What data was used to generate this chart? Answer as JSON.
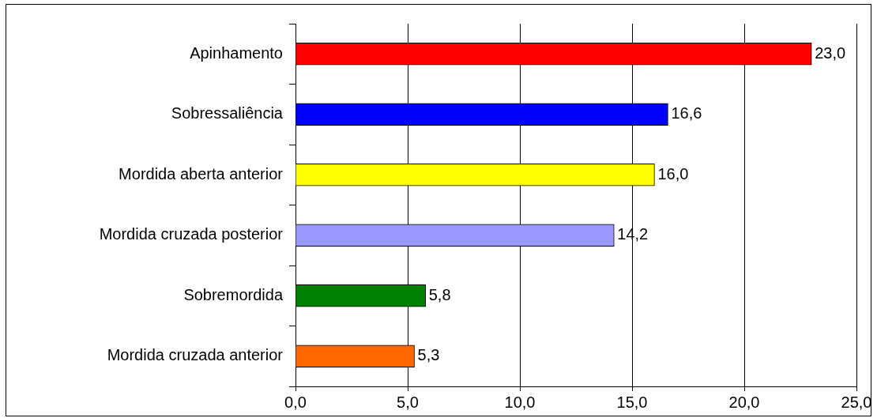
{
  "chart_data": {
    "type": "bar",
    "orientation": "horizontal",
    "categories": [
      "Apinhamento",
      "Sobressaliência",
      "Mordida aberta anterior",
      "Mordida cruzada posterior",
      "Sobremordida",
      "Mordida cruzada anterior"
    ],
    "values": [
      23.0,
      16.6,
      16.0,
      14.2,
      5.8,
      5.3
    ],
    "colors": [
      "#ff0000",
      "#0000ff",
      "#ffff00",
      "#9999ff",
      "#008000",
      "#ff6600"
    ],
    "value_labels": [
      "23,0",
      "16,6",
      "16,0",
      "14,2",
      "5,8",
      "5,3"
    ],
    "xlim": [
      0,
      25
    ],
    "xticks": [
      {
        "value": 0,
        "label": "0,0"
      },
      {
        "value": 5,
        "label": "5,0"
      },
      {
        "value": 10,
        "label": "10,0"
      },
      {
        "value": 15,
        "label": "15,0"
      },
      {
        "value": 20,
        "label": "20,0"
      },
      {
        "value": 25,
        "label": "25,0"
      }
    ],
    "grid": "x",
    "legend": false
  }
}
